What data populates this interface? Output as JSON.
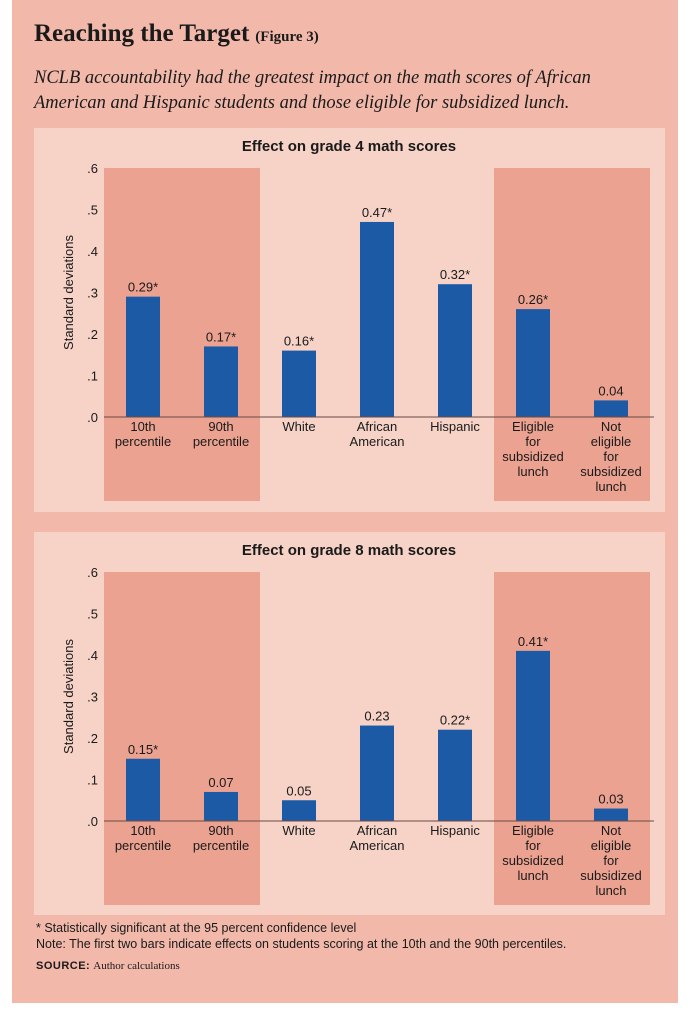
{
  "figure": {
    "title": "Reaching the Target",
    "figure_label": "(Figure 3)",
    "subtitle": "NCLB accountability had the greatest impact on the math scores of African American and Hispanic students and those eligible for subsidized lunch.",
    "footnote": "* Statistically significant at the 95 percent confidence level",
    "note": "Note: The first two bars indicate effects on students scoring at the 10th and the 90th percentiles.",
    "source_label": "SOURCE:",
    "source_text": "Author calculations"
  },
  "colors": {
    "bar": "#1d5aa6",
    "background": "#f2b9ab",
    "panel": "#f7d3c7",
    "highlight": "#eca291"
  },
  "chart_data": [
    {
      "type": "bar",
      "title": "Effect on grade 4 math scores",
      "ylabel": "Standard deviations",
      "ylim": [
        0,
        0.6
      ],
      "yticks": [
        0,
        0.1,
        0.2,
        0.3,
        0.4,
        0.5,
        0.6
      ],
      "ytick_labels": [
        ".0",
        ".1",
        ".2",
        ".3",
        ".4",
        ".5",
        ".6"
      ],
      "categories": [
        [
          "10th",
          "percentile"
        ],
        [
          "90th",
          "percentile"
        ],
        [
          "White"
        ],
        [
          "African",
          "American"
        ],
        [
          "Hispanic"
        ],
        [
          "Eligible",
          "for",
          "subsidized",
          "lunch"
        ],
        [
          "Not",
          "eligible",
          "for",
          "subsidized",
          "lunch"
        ]
      ],
      "values": [
        0.29,
        0.17,
        0.16,
        0.47,
        0.32,
        0.26,
        0.04
      ],
      "value_labels": [
        "0.29*",
        "0.17*",
        "0.16*",
        "0.47*",
        "0.32*",
        "0.26*",
        "0.04"
      ],
      "highlight_groups": [
        [
          0,
          1
        ],
        [
          5,
          6
        ]
      ]
    },
    {
      "type": "bar",
      "title": "Effect on grade 8 math scores",
      "ylabel": "Standard deviations",
      "ylim": [
        0,
        0.6
      ],
      "yticks": [
        0,
        0.1,
        0.2,
        0.3,
        0.4,
        0.5,
        0.6
      ],
      "ytick_labels": [
        ".0",
        ".1",
        ".2",
        ".3",
        ".4",
        ".5",
        ".6"
      ],
      "categories": [
        [
          "10th",
          "percentile"
        ],
        [
          "90th",
          "percentile"
        ],
        [
          "White"
        ],
        [
          "African",
          "American"
        ],
        [
          "Hispanic"
        ],
        [
          "Eligible",
          "for",
          "subsidized",
          "lunch"
        ],
        [
          "Not",
          "eligible",
          "for",
          "subsidized",
          "lunch"
        ]
      ],
      "values": [
        0.15,
        0.07,
        0.05,
        0.23,
        0.22,
        0.41,
        0.03
      ],
      "value_labels": [
        "0.15*",
        "0.07",
        "0.05",
        "0.23",
        "0.22*",
        "0.41*",
        "0.03"
      ],
      "highlight_groups": [
        [
          0,
          1
        ],
        [
          5,
          6
        ]
      ]
    }
  ]
}
